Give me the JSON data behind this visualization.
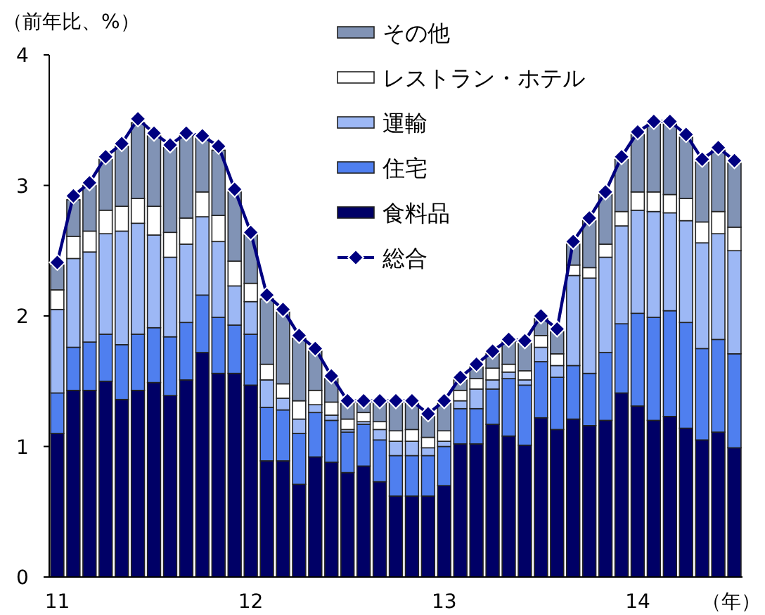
{
  "chart_data": {
    "type": "bar",
    "stacked": true,
    "ylabel": "（前年比、%）",
    "xlabel": "（年）",
    "categories": [
      "11",
      null,
      null,
      null,
      null,
      null,
      null,
      null,
      null,
      null,
      null,
      null,
      "12",
      null,
      null,
      null,
      null,
      null,
      null,
      null,
      null,
      null,
      null,
      null,
      "13",
      null,
      null,
      null,
      null,
      null,
      null,
      null,
      null,
      null,
      null,
      null,
      "14",
      null,
      null,
      null,
      null,
      null,
      null
    ],
    "ylim": [
      0,
      4
    ],
    "yticks": [
      0,
      1,
      2,
      3,
      4
    ],
    "legend": "top",
    "grid": false,
    "series": [
      {
        "name": "食料品",
        "color": "#000066",
        "values": [
          1.1,
          1.43,
          1.43,
          1.5,
          1.36,
          1.43,
          1.49,
          1.39,
          1.51,
          1.72,
          1.56,
          1.56,
          1.47,
          0.89,
          0.89,
          0.71,
          0.92,
          0.88,
          0.8,
          0.85,
          0.73,
          0.62,
          0.62,
          0.62,
          0.7,
          1.02,
          1.02,
          1.17,
          1.08,
          1.01,
          1.22,
          1.13,
          1.21,
          1.16,
          1.2,
          1.41,
          1.31,
          1.2,
          1.23,
          1.14,
          1.05,
          1.11,
          0.99
        ]
      },
      {
        "name": "住宅",
        "color": "#4f7fef",
        "values": [
          0.31,
          0.33,
          0.37,
          0.36,
          0.42,
          0.43,
          0.42,
          0.45,
          0.44,
          0.44,
          0.43,
          0.37,
          0.39,
          0.41,
          0.39,
          0.39,
          0.34,
          0.32,
          0.31,
          0.32,
          0.32,
          0.31,
          0.31,
          0.31,
          0.3,
          0.27,
          0.27,
          0.27,
          0.44,
          0.46,
          0.43,
          0.4,
          0.41,
          0.4,
          0.52,
          0.53,
          0.71,
          0.79,
          0.81,
          0.81,
          0.7,
          0.71,
          0.72
        ]
      },
      {
        "name": "運輸",
        "color": "#9db8f5",
        "values": [
          0.64,
          0.68,
          0.69,
          0.77,
          0.87,
          0.85,
          0.71,
          0.61,
          0.6,
          0.6,
          0.58,
          0.3,
          0.25,
          0.21,
          0.09,
          0.11,
          0.06,
          0.04,
          0.02,
          0.02,
          0.08,
          0.11,
          0.11,
          0.06,
          0.04,
          0.06,
          0.15,
          0.07,
          0.05,
          0.04,
          0.11,
          0.09,
          0.69,
          0.73,
          0.73,
          0.75,
          0.79,
          0.81,
          0.75,
          0.78,
          0.81,
          0.81,
          0.79
        ]
      },
      {
        "name": "レストラン・ホテル",
        "color": "#ffffff",
        "values": [
          0.15,
          0.17,
          0.16,
          0.18,
          0.19,
          0.19,
          0.22,
          0.19,
          0.2,
          0.19,
          0.2,
          0.19,
          0.14,
          0.12,
          0.11,
          0.14,
          0.11,
          0.1,
          0.08,
          0.07,
          0.06,
          0.08,
          0.09,
          0.08,
          0.08,
          0.08,
          0.08,
          0.09,
          0.06,
          0.07,
          0.09,
          0.09,
          0.08,
          0.08,
          0.1,
          0.11,
          0.14,
          0.15,
          0.14,
          0.17,
          0.16,
          0.17,
          0.18
        ]
      },
      {
        "name": "その他",
        "color": "#8193b5",
        "values": [
          0.19,
          0.28,
          0.35,
          0.39,
          0.46,
          0.58,
          0.54,
          0.65,
          0.63,
          0.42,
          0.5,
          0.53,
          0.37,
          0.5,
          0.55,
          0.48,
          0.3,
          0.18,
          0.12,
          0.07,
          0.14,
          0.21,
          0.2,
          0.16,
          0.21,
          0.08,
          0.09,
          0.11,
          0.17,
          0.21,
          0.13,
          0.17,
          0.16,
          0.36,
          0.38,
          0.4,
          0.44,
          0.52,
          0.54,
          0.47,
          0.46,
          0.47,
          0.49
        ]
      },
      {
        "name": "総合",
        "type": "line",
        "color": "#000080",
        "marker": "diamond",
        "line_style": "solid",
        "values": [
          2.41,
          2.92,
          3.02,
          3.22,
          3.32,
          3.51,
          3.4,
          3.31,
          3.4,
          3.38,
          3.3,
          2.97,
          2.64,
          2.16,
          2.05,
          1.85,
          1.75,
          1.54,
          1.35,
          1.35,
          1.35,
          1.35,
          1.35,
          1.25,
          1.35,
          1.53,
          1.63,
          1.73,
          1.82,
          1.81,
          2.0,
          1.9,
          2.57,
          2.75,
          2.95,
          3.22,
          3.41,
          3.49,
          3.49,
          3.39,
          3.2,
          3.29,
          3.19
        ]
      }
    ]
  }
}
